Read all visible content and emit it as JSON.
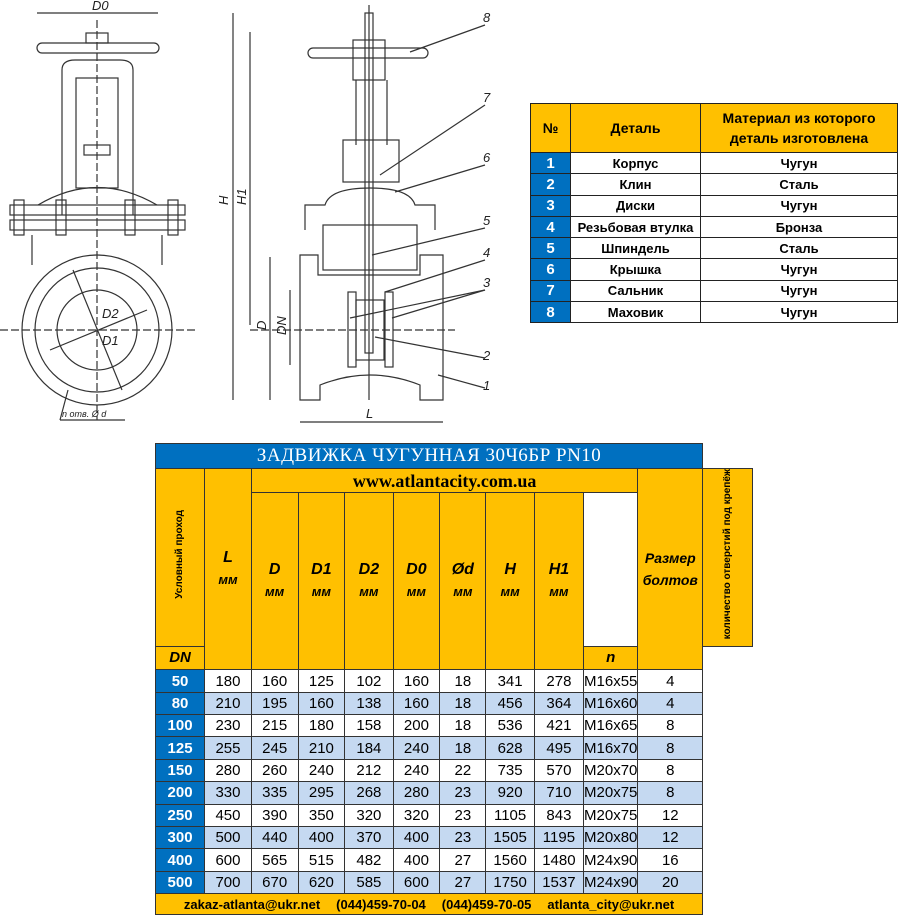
{
  "drawing": {
    "labels": {
      "D0": "D0",
      "H": "H",
      "H1": "H1",
      "D": "D",
      "DN": "DN",
      "L": "L",
      "D2": "D2",
      "D1": "D1",
      "holes": "n отв. Ø d"
    },
    "callouts": [
      "1",
      "2",
      "3",
      "4",
      "5",
      "6",
      "7",
      "8"
    ]
  },
  "parts_table": {
    "headers": [
      "№",
      "Деталь",
      "Материал из которого деталь изготовлена"
    ],
    "rows": [
      [
        "1",
        "Корпус",
        "Чугун"
      ],
      [
        "2",
        "Клин",
        "Сталь"
      ],
      [
        "3",
        "Диски",
        "Чугун"
      ],
      [
        "4",
        "Резьбовая втулка",
        "Бронза"
      ],
      [
        "5",
        "Шпиндель",
        "Сталь"
      ],
      [
        "6",
        "Крышка",
        "Чугун"
      ],
      [
        "7",
        "Сальник",
        "Чугун"
      ],
      [
        "8",
        "Маховик",
        "Чугун"
      ]
    ]
  },
  "spec_table": {
    "title": "ЗАДВИЖКА ЧУГУННАЯ 30Ч6БР PN10",
    "website": "www.atlantacity.com.ua",
    "dn_label": "Условный проход",
    "dn_unit": "DN",
    "columns": [
      {
        "name": "L",
        "unit": "мм"
      },
      {
        "name": "D",
        "unit": "мм"
      },
      {
        "name": "D1",
        "unit": "мм"
      },
      {
        "name": "D2",
        "unit": "мм"
      },
      {
        "name": "D0",
        "unit": "мм"
      },
      {
        "name": "Ød",
        "unit": "мм"
      },
      {
        "name": "H",
        "unit": "мм"
      },
      {
        "name": "H1",
        "unit": "мм"
      }
    ],
    "bolt_label": "Размер болтов",
    "holes_label": "количество отверстий под крепёж",
    "holes_unit": "n",
    "rows": [
      [
        "50",
        "180",
        "160",
        "125",
        "102",
        "160",
        "18",
        "341",
        "278",
        "M16x55",
        "4"
      ],
      [
        "80",
        "210",
        "195",
        "160",
        "138",
        "160",
        "18",
        "456",
        "364",
        "M16x60",
        "4"
      ],
      [
        "100",
        "230",
        "215",
        "180",
        "158",
        "200",
        "18",
        "536",
        "421",
        "M16x65",
        "8"
      ],
      [
        "125",
        "255",
        "245",
        "210",
        "184",
        "240",
        "18",
        "628",
        "495",
        "M16x70",
        "8"
      ],
      [
        "150",
        "280",
        "260",
        "240",
        "212",
        "240",
        "22",
        "735",
        "570",
        "M20x70",
        "8"
      ],
      [
        "200",
        "330",
        "335",
        "295",
        "268",
        "280",
        "23",
        "920",
        "710",
        "M20x75",
        "8"
      ],
      [
        "250",
        "450",
        "390",
        "350",
        "320",
        "320",
        "23",
        "1105",
        "843",
        "M20x75",
        "12"
      ],
      [
        "300",
        "500",
        "440",
        "400",
        "370",
        "400",
        "23",
        "1505",
        "1195",
        "M20x80",
        "12"
      ],
      [
        "400",
        "600",
        "565",
        "515",
        "482",
        "400",
        "27",
        "1560",
        "1480",
        "M24x90",
        "16"
      ],
      [
        "500",
        "700",
        "670",
        "620",
        "585",
        "600",
        "27",
        "1750",
        "1537",
        "M24x90",
        "20"
      ]
    ],
    "footer": [
      "zakaz-atlanta@ukr.net",
      "(044)459-70-04",
      "(044)459-70-05",
      "atlanta_city@ukr.net"
    ]
  },
  "colors": {
    "blue": "#0070c0",
    "yellow": "#ffc000",
    "light_blue": "#c5d9f1"
  }
}
